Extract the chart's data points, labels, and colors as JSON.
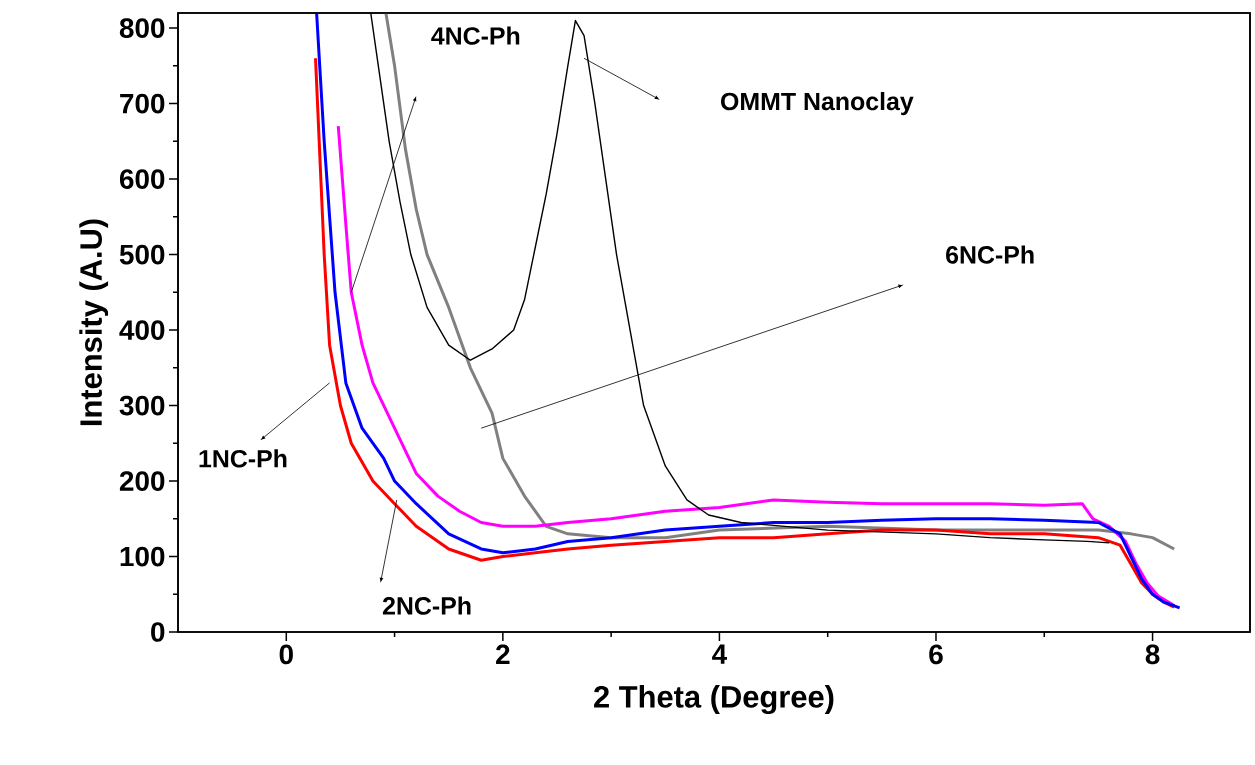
{
  "chart_data": {
    "type": "line",
    "xlabel": "2 Theta (Degree)",
    "ylabel": "Intensity (A.U)",
    "xlim": [
      -1,
      8.9
    ],
    "ylim": [
      0,
      820
    ],
    "xticks": [
      0,
      2,
      4,
      6,
      8
    ],
    "yticks": [
      0,
      100,
      200,
      300,
      400,
      500,
      600,
      700,
      800
    ],
    "annotations": [
      "OMMT Nanoclay",
      "1NC-Ph",
      "2NC-Ph",
      "4NC-Ph",
      "6NC-Ph"
    ],
    "series": [
      {
        "color": "#000000",
        "x": [
          0.78,
          0.85,
          0.95,
          1.05,
          1.15,
          1.3,
          1.5,
          1.7,
          1.9,
          2.1,
          2.2,
          2.3,
          2.4,
          2.5,
          2.6,
          2.67,
          2.75,
          2.85,
          2.95,
          3.05,
          3.15,
          3.3,
          3.5,
          3.7,
          3.9,
          4.2,
          5,
          6,
          6.5,
          7,
          7.4,
          7.6
        ],
        "values": [
          820,
          750,
          650,
          570,
          500,
          430,
          380,
          360,
          375,
          400,
          440,
          510,
          580,
          660,
          750,
          810,
          790,
          700,
          600,
          500,
          420,
          300,
          220,
          175,
          155,
          145,
          135,
          130,
          125,
          122,
          120,
          118
        ]
      },
      {
        "color": "#ff0000",
        "x": [
          0.27,
          0.35,
          0.4,
          0.5,
          0.6,
          0.8,
          1.0,
          1.2,
          1.5,
          1.8,
          2.0,
          2.3,
          2.6,
          3,
          3.5,
          4,
          4.5,
          5,
          5.5,
          6,
          6.5,
          7,
          7.5,
          7.7,
          7.8,
          7.9,
          8.0,
          8.1,
          8.2
        ],
        "values": [
          760,
          500,
          380,
          300,
          250,
          200,
          170,
          140,
          110,
          95,
          100,
          105,
          110,
          115,
          120,
          125,
          125,
          130,
          135,
          135,
          130,
          130,
          125,
          115,
          90,
          65,
          50,
          40,
          33
        ]
      },
      {
        "color": "#0000ff",
        "x": [
          0.28,
          0.35,
          0.45,
          0.55,
          0.7,
          0.9,
          1.0,
          1.2,
          1.5,
          1.8,
          2.0,
          2.3,
          2.6,
          3,
          3.5,
          4,
          4.5,
          5,
          5.5,
          6,
          6.5,
          7,
          7.5,
          7.7,
          7.8,
          7.9,
          8.0,
          8.1,
          8.25
        ],
        "values": [
          820,
          650,
          450,
          330,
          270,
          230,
          200,
          170,
          130,
          110,
          105,
          110,
          120,
          125,
          135,
          140,
          145,
          145,
          148,
          150,
          150,
          148,
          145,
          130,
          100,
          70,
          50,
          40,
          32
        ]
      },
      {
        "color": "#ff00ff",
        "x": [
          0.48,
          0.55,
          0.6,
          0.7,
          0.8,
          1.0,
          1.2,
          1.4,
          1.6,
          1.8,
          2.0,
          2.3,
          2.6,
          3,
          3.5,
          4,
          4.5,
          5,
          5.5,
          6,
          6.5,
          7,
          7.35,
          7.45,
          7.6,
          7.75,
          7.85,
          7.95,
          8.05,
          8.2
        ],
        "values": [
          670,
          540,
          450,
          380,
          330,
          270,
          210,
          180,
          160,
          145,
          140,
          140,
          145,
          150,
          160,
          165,
          175,
          172,
          170,
          170,
          170,
          168,
          170,
          150,
          140,
          120,
          90,
          65,
          48,
          35
        ]
      },
      {
        "color": "#808080",
        "x": [
          0.92,
          1.0,
          1.1,
          1.2,
          1.3,
          1.5,
          1.7,
          1.9,
          2.0,
          2.2,
          2.4,
          2.6,
          3,
          3.5,
          4,
          5,
          6,
          7,
          7.5,
          7.8,
          8.0,
          8.2
        ],
        "values": [
          820,
          750,
          640,
          560,
          500,
          430,
          350,
          290,
          230,
          180,
          140,
          130,
          125,
          125,
          135,
          140,
          135,
          135,
          135,
          130,
          125,
          110
        ]
      }
    ]
  }
}
